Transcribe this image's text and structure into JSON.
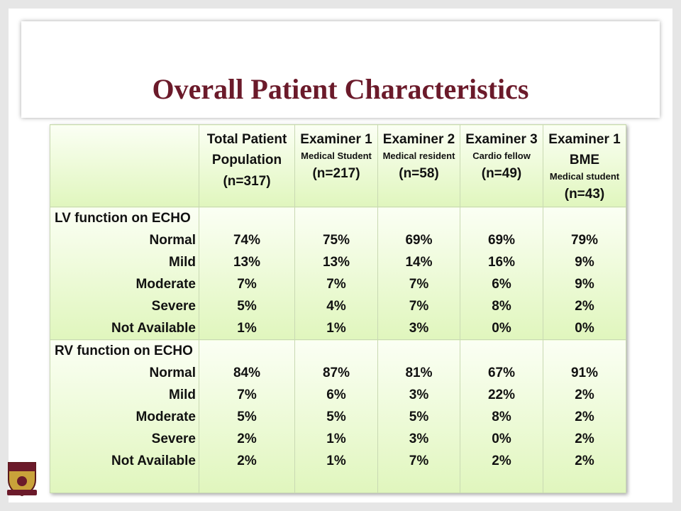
{
  "title": "Overall Patient Characteristics",
  "table": {
    "columns": [
      {
        "name": "Total Patient Population",
        "n": "(n=317)"
      },
      {
        "name": "Examiner 1",
        "role": "Medical Student",
        "n": "(n=217)"
      },
      {
        "name": "Examiner 2",
        "role": "Medical resident",
        "n": "(n=58)"
      },
      {
        "name": "Examiner 3",
        "role": "Cardio fellow",
        "n": "(n=49)"
      },
      {
        "name": "Examiner 1 BME",
        "role": "Medical student",
        "n": "(n=43)"
      }
    ],
    "sections": [
      {
        "label": "LV function on ECHO",
        "rows": [
          {
            "label": "Normal",
            "values": [
              "74%",
              "75%",
              "69%",
              "69%",
              "79%"
            ]
          },
          {
            "label": "Mild",
            "values": [
              "13%",
              "13%",
              "14%",
              "16%",
              "9%"
            ]
          },
          {
            "label": "Moderate",
            "values": [
              "7%",
              "7%",
              "7%",
              "6%",
              "9%"
            ]
          },
          {
            "label": "Severe",
            "values": [
              "5%",
              "4%",
              "7%",
              "8%",
              "2%"
            ]
          },
          {
            "label": "Not Available",
            "values": [
              "1%",
              "1%",
              "3%",
              "0%",
              "0%"
            ]
          }
        ]
      },
      {
        "label": "RV function on ECHO",
        "rows": [
          {
            "label": "Normal",
            "values": [
              "84%",
              "87%",
              "81%",
              "67%",
              "91%"
            ]
          },
          {
            "label": "Mild",
            "values": [
              "7%",
              "6%",
              "3%",
              "22%",
              "2%"
            ]
          },
          {
            "label": "Moderate",
            "values": [
              "5%",
              "5%",
              "5%",
              "8%",
              "2%"
            ]
          },
          {
            "label": "Severe",
            "values": [
              "2%",
              "1%",
              "3%",
              "0%",
              "2%"
            ]
          },
          {
            "label": "Not Available",
            "values": [
              "2%",
              "1%",
              "7%",
              "2%",
              "2%"
            ]
          }
        ]
      }
    ]
  }
}
